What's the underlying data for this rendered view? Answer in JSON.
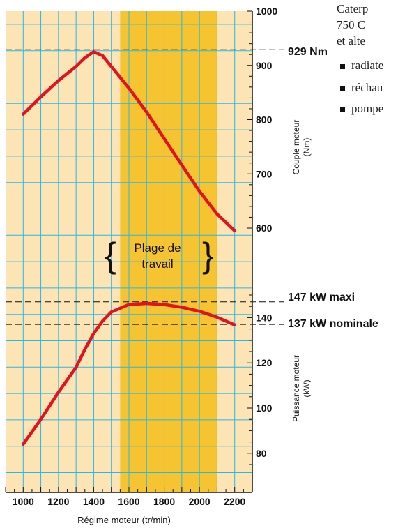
{
  "side_text": {
    "line1": "Caterp",
    "line2": "750 C",
    "line3": "et alte",
    "bullets": [
      "radiate",
      "réchau",
      "pompe"
    ]
  },
  "chart_data": {
    "type": "line",
    "xlabel": "Régime moteur (tr/min)",
    "x_ticks": [
      1000,
      1200,
      1400,
      1600,
      1800,
      2000,
      2200
    ],
    "xlim": [
      900,
      2300
    ],
    "colors": {
      "background": "#fde4b5",
      "band": "#f6c431",
      "grid": "#2ab7e6",
      "curve": "#e0141e",
      "text": "#111111"
    },
    "working_range": {
      "label_line1": "Plage de",
      "label_line2": "travail",
      "x_start": 1550,
      "x_end": 2100
    },
    "torque": {
      "ylabel_line1": "Couple moteur",
      "ylabel_line2": "(Nm)",
      "y_ticks": [
        600,
        700,
        800,
        900,
        1000
      ],
      "ylim": [
        600,
        1000
      ],
      "x": [
        1000,
        1100,
        1200,
        1300,
        1350,
        1400,
        1450,
        1500,
        1600,
        1700,
        1800,
        1900,
        2000,
        2100,
        2200
      ],
      "values": [
        810,
        842,
        872,
        898,
        914,
        925,
        918,
        898,
        858,
        814,
        765,
        716,
        668,
        626,
        595
      ],
      "reference": {
        "value": 929,
        "label": "929 Nm"
      }
    },
    "power": {
      "ylabel_line1": "Puissance moteur",
      "ylabel_line2": "(kW)",
      "y_ticks": [
        80,
        100,
        120,
        140
      ],
      "ylim": [
        75,
        150
      ],
      "x": [
        1000,
        1100,
        1200,
        1300,
        1350,
        1400,
        1450,
        1500,
        1600,
        1700,
        1800,
        1900,
        2000,
        2100,
        2200
      ],
      "values": [
        84,
        95,
        107,
        118,
        126,
        133,
        138.5,
        142.5,
        145.8,
        146.3,
        145.8,
        144.6,
        142.8,
        140.2,
        136.8
      ],
      "reference_max": {
        "value": 147,
        "label": "147 kW maxi"
      },
      "reference_nominal": {
        "value": 137,
        "label": "137 kW nominale"
      }
    }
  }
}
